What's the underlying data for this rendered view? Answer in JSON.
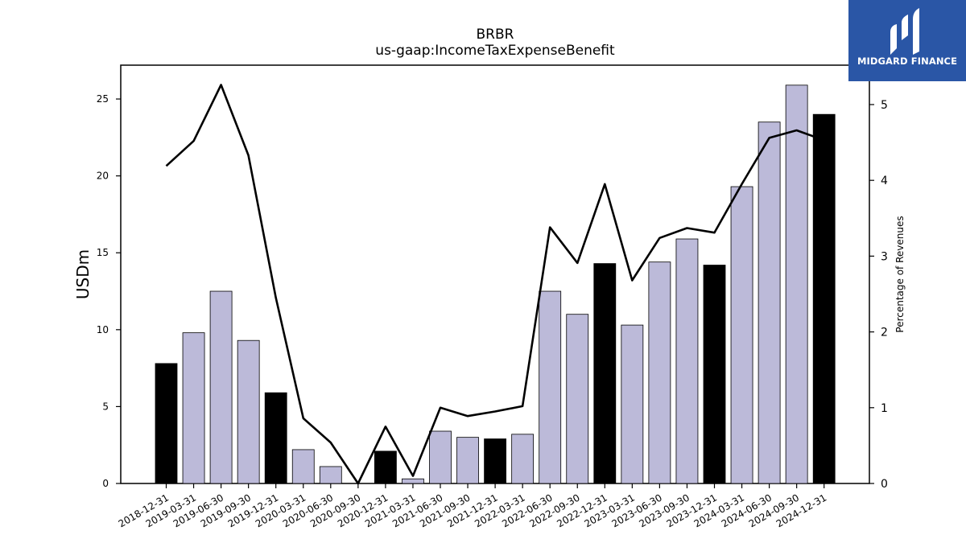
{
  "chart_data": {
    "type": "bar",
    "title": "BRBR",
    "subtitle": "us-gaap:IncomeTaxExpenseBenefit",
    "ylabel": "USDm",
    "y2label": "Percentage of Revenues",
    "ylim": [
      0,
      27.2
    ],
    "y2lim": [
      0,
      5.52
    ],
    "yticks": [
      0,
      5,
      10,
      15,
      20,
      25
    ],
    "y2ticks": [
      0,
      1,
      2,
      3,
      4,
      5
    ],
    "grid": false,
    "categories": [
      "2018-12-31",
      "2019-03-31",
      "2019-06-30",
      "2019-09-30",
      "2019-12-31",
      "2020-03-31",
      "2020-06-30",
      "2020-09-30",
      "2020-12-31",
      "2021-03-31",
      "2021-06-30",
      "2021-09-30",
      "2021-12-31",
      "2022-03-31",
      "2022-06-30",
      "2022-09-30",
      "2022-12-31",
      "2023-03-31",
      "2023-06-30",
      "2023-09-30",
      "2023-12-31",
      "2024-03-31",
      "2024-06-30",
      "2024-09-30",
      "2024-12-31"
    ],
    "series": [
      {
        "type": "bar",
        "values": [
          7.8,
          9.8,
          12.5,
          9.3,
          5.9,
          2.2,
          1.1,
          0.0,
          2.1,
          0.3,
          3.4,
          3.0,
          2.9,
          3.2,
          12.5,
          11.0,
          14.3,
          10.3,
          14.4,
          15.9,
          14.2,
          19.3,
          23.5,
          25.9,
          24.0
        ],
        "colors": [
          "#000000",
          "#bcbad9",
          "#bcbad9",
          "#bcbad9",
          "#000000",
          "#bcbad9",
          "#bcbad9",
          "#bcbad9",
          "#000000",
          "#bcbad9",
          "#bcbad9",
          "#bcbad9",
          "#000000",
          "#bcbad9",
          "#bcbad9",
          "#bcbad9",
          "#000000",
          "#bcbad9",
          "#bcbad9",
          "#bcbad9",
          "#000000",
          "#bcbad9",
          "#bcbad9",
          "#bcbad9",
          "#000000"
        ]
      },
      {
        "type": "line",
        "axis": "right",
        "color": "#000000",
        "values": [
          4.19,
          4.52,
          5.26,
          4.33,
          2.45,
          0.86,
          0.54,
          0.0,
          0.75,
          0.1,
          1.0,
          0.89,
          0.95,
          1.02,
          3.38,
          2.91,
          3.95,
          2.68,
          3.24,
          3.37,
          3.31,
          3.95,
          4.56,
          4.66,
          4.53
        ]
      }
    ]
  },
  "logo": {
    "text": "MIDGARD FINANCE",
    "background": "#2a56a6"
  }
}
